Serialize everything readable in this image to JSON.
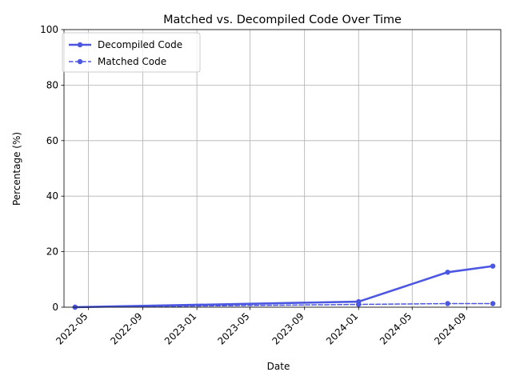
{
  "chart_data": {
    "type": "line",
    "title": "Matched vs. Decompiled Code Over Time",
    "xlabel": "Date",
    "ylabel": "Percentage (%)",
    "ylim": [
      0,
      100
    ],
    "xlim": [
      "2022-03-07",
      "2024-11-17"
    ],
    "x_ticks": [
      "2022-05",
      "2022-09",
      "2023-01",
      "2023-05",
      "2023-09",
      "2024-01",
      "2024-05",
      "2024-09"
    ],
    "y_ticks": [
      "0",
      "20",
      "40",
      "60",
      "80",
      "100"
    ],
    "grid": true,
    "legend_position": "top-left",
    "color": "#4b57e0",
    "series": [
      {
        "name": "Decompiled Code",
        "line_style": "solid",
        "x": [
          "2022-04-01",
          "2024-01-01",
          "2024-07-20",
          "2024-10-30"
        ],
        "values": [
          0.0,
          2.0,
          12.6,
          14.8
        ]
      },
      {
        "name": "Matched Code",
        "line_style": "dashed",
        "x": [
          "2022-04-01",
          "2024-01-01",
          "2024-07-20",
          "2024-10-30"
        ],
        "values": [
          0.0,
          1.0,
          1.3,
          1.3
        ]
      }
    ]
  }
}
